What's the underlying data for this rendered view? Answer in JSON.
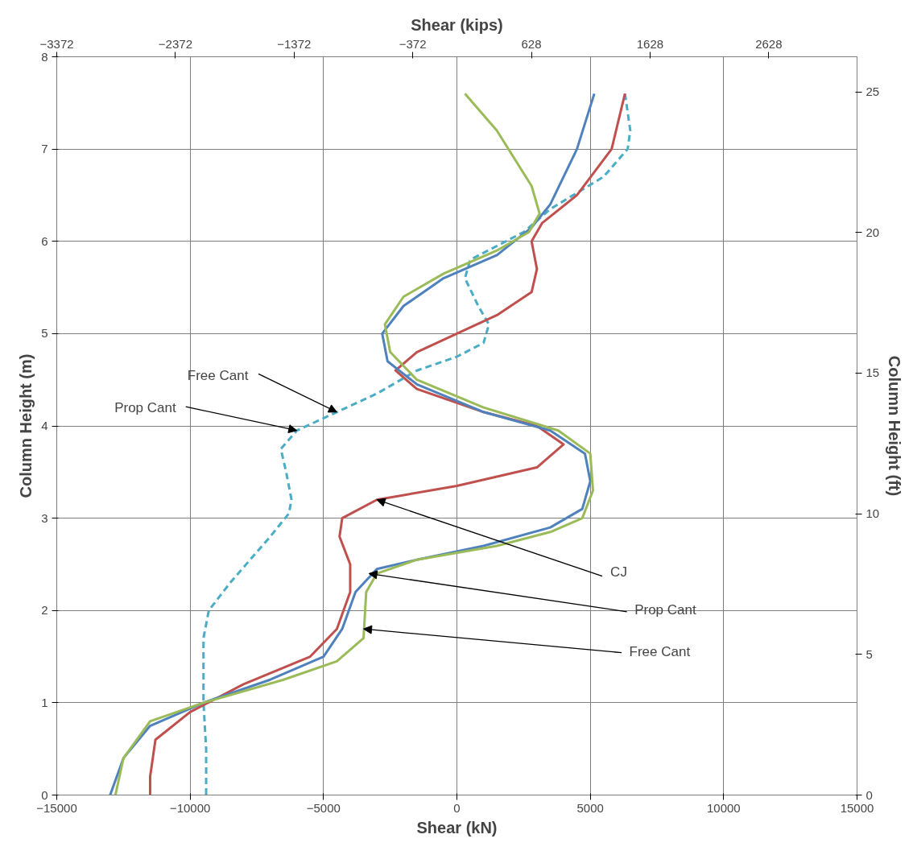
{
  "chart_data": {
    "type": "line",
    "xlabel": "Shear (kN)",
    "ylabel": "Column Height (m)",
    "x2label": "Shear (kips)",
    "y2label": "Column Height (ft)",
    "xlim": [
      -15000,
      15000
    ],
    "xticks": [
      -15000,
      -10000,
      -5000,
      0,
      5000,
      10000,
      15000
    ],
    "ylim": [
      0,
      8
    ],
    "yticks": [
      0,
      1,
      2,
      3,
      4,
      5,
      6,
      7,
      8
    ],
    "x2lim": [
      -3372.2,
      3372.2
    ],
    "x2ticks": [
      -3372,
      -2372,
      -1372,
      -372,
      628,
      1628,
      2628
    ],
    "y2lim": [
      0,
      26.247
    ],
    "y2ticks": [
      0,
      5,
      10,
      15,
      20,
      25
    ],
    "grid": true,
    "series": [
      {
        "color": "#4bacc6",
        "line_style": "dashed",
        "x": [
          6300,
          6500,
          6400,
          5500,
          3500,
          2500,
          1500,
          500,
          300,
          800,
          1200,
          1000,
          0,
          -1500,
          -3000,
          -4500,
          -6000,
          -6600,
          -6400,
          -6200,
          -6300,
          -7000,
          -8500,
          -9300,
          -9500,
          -9500,
          -9400,
          -9400
        ],
        "values": [
          7.6,
          7.2,
          7.0,
          6.7,
          6.35,
          6.1,
          5.95,
          5.8,
          5.6,
          5.3,
          5.1,
          4.9,
          4.75,
          4.6,
          4.35,
          4.15,
          3.95,
          3.75,
          3.5,
          3.2,
          3.05,
          2.8,
          2.3,
          2.0,
          1.7,
          1.0,
          0.5,
          0
        ]
      },
      {
        "color": "#c0504d",
        "line_style": "solid",
        "x": [
          6300,
          5800,
          4500,
          3200,
          2800,
          3000,
          2800,
          1500,
          0,
          -1500,
          -2300,
          -1500,
          1000,
          3000,
          4000,
          3000,
          0,
          -3000,
          -4300,
          -4400,
          -4000,
          -4000,
          -4500,
          -5500,
          -8000,
          -10000,
          -11300,
          -11500,
          -11500
        ],
        "values": [
          7.6,
          7.0,
          6.5,
          6.2,
          6.0,
          5.7,
          5.45,
          5.2,
          5.0,
          4.8,
          4.6,
          4.4,
          4.15,
          4.0,
          3.8,
          3.55,
          3.35,
          3.2,
          3.0,
          2.8,
          2.5,
          2.2,
          1.8,
          1.5,
          1.2,
          0.9,
          0.6,
          0.2,
          0
        ]
      },
      {
        "color": "#4f81bd",
        "line_style": "solid",
        "x": [
          5150,
          4500,
          3500,
          2800,
          1500,
          -500,
          -2000,
          -2800,
          -2600,
          -1500,
          1000,
          3500,
          4800,
          5000,
          4700,
          3500,
          1000,
          -1500,
          -3000,
          -3800,
          -4300,
          -5000,
          -7000,
          -9500,
          -11500,
          -12500,
          -13000
        ],
        "values": [
          7.6,
          7.0,
          6.4,
          6.15,
          5.85,
          5.6,
          5.3,
          5.0,
          4.7,
          4.45,
          4.15,
          3.95,
          3.7,
          3.4,
          3.1,
          2.9,
          2.7,
          2.55,
          2.45,
          2.2,
          1.8,
          1.5,
          1.25,
          1.0,
          0.75,
          0.4,
          0
        ]
      },
      {
        "color": "#9bbb59",
        "line_style": "solid",
        "x": [
          300,
          1500,
          2800,
          3100,
          2700,
          1500,
          -500,
          -2000,
          -2700,
          -2500,
          -1500,
          1000,
          3800,
          5000,
          5100,
          4700,
          3500,
          1500,
          -1500,
          -3000,
          -3400,
          -3500,
          -4500,
          -6500,
          -9500,
          -11500,
          -12500,
          -12800
        ],
        "values": [
          7.6,
          7.2,
          6.6,
          6.3,
          6.1,
          5.9,
          5.65,
          5.4,
          5.1,
          4.8,
          4.5,
          4.2,
          3.95,
          3.7,
          3.3,
          3.0,
          2.85,
          2.7,
          2.55,
          2.4,
          2.2,
          1.7,
          1.45,
          1.25,
          1.0,
          0.8,
          0.4,
          0
        ]
      }
    ],
    "annotations": [
      {
        "text": "Free Cant",
        "x": -4500,
        "y": 4.15
      },
      {
        "text": "Prop Cant",
        "x": -6000,
        "y": 3.95
      },
      {
        "text": "CJ",
        "x": -3000,
        "y": 3.2
      },
      {
        "text": "Prop Cant",
        "x": -3300,
        "y": 2.4
      },
      {
        "text": "Free Cant",
        "x": -3500,
        "y": 1.8
      }
    ]
  }
}
